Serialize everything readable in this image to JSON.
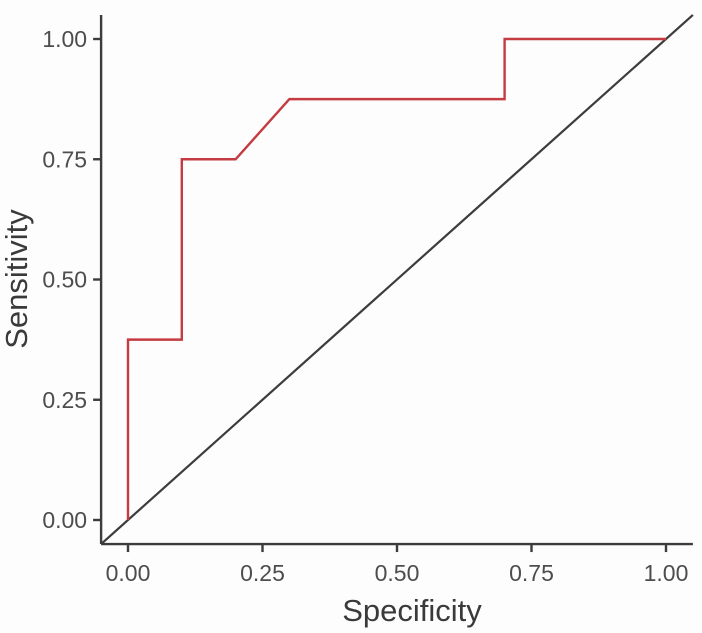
{
  "chart_data": {
    "type": "line",
    "subtype": "roc-curve",
    "title": "",
    "xlabel": "Specificity",
    "ylabel": "Sensitivity",
    "xlim": [
      0,
      1
    ],
    "ylim": [
      0,
      1
    ],
    "axis_expansion": 0.05,
    "grid": false,
    "legend": "none",
    "x_ticks": {
      "values": [
        0,
        0.25,
        0.5,
        0.75,
        1
      ],
      "labels": [
        "0.00",
        "0.25",
        "0.50",
        "0.75",
        "1.00"
      ]
    },
    "y_ticks": {
      "values": [
        0,
        0.25,
        0.5,
        0.75,
        1
      ],
      "labels": [
        "0.00",
        "0.25",
        "0.50",
        "0.75",
        "1.00"
      ]
    },
    "series": [
      {
        "name": "roc-curve",
        "color": "#c43b41",
        "points": [
          [
            0.0,
            0.0
          ],
          [
            0.0,
            0.375
          ],
          [
            0.1,
            0.375
          ],
          [
            0.1,
            0.75
          ],
          [
            0.2,
            0.75
          ],
          [
            0.3,
            0.875
          ],
          [
            0.7,
            0.875
          ],
          [
            0.7,
            1.0
          ],
          [
            1.0,
            1.0
          ]
        ]
      }
    ],
    "reference_line": {
      "name": "chance-diagonal",
      "from": [
        0,
        0
      ],
      "to": [
        1,
        1
      ],
      "color": "#3c3c3c",
      "spans_full_panel": true
    },
    "colors": {
      "axis_line": "#3c3c3c",
      "tick_mark": "#3c3c3c",
      "tick_text": "#4d4d4d",
      "axis_title_text": "#3a3a3a",
      "background": "#fdfdfd"
    }
  }
}
